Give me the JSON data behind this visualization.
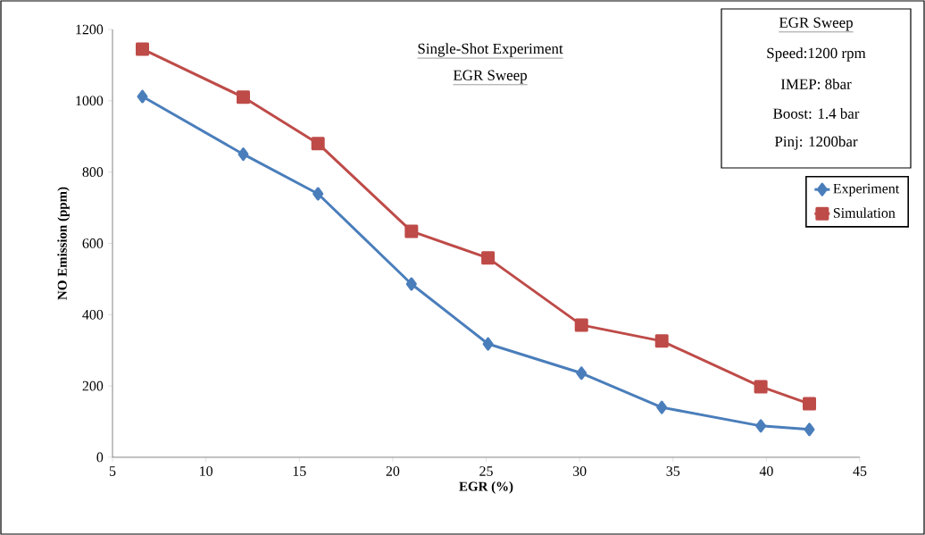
{
  "chart_data": {
    "type": "line",
    "xlabel": "EGR (%)",
    "ylabel": "NO Emission (ppm)",
    "x": [
      6.6,
      12.0,
      16.0,
      21.0,
      25.1,
      30.1,
      34.4,
      39.7,
      42.3
    ],
    "series": [
      {
        "name": "Experiment",
        "color": "#4a7ebb",
        "marker": "diamond",
        "values": [
          1012,
          850,
          739,
          486,
          318,
          236,
          140,
          88,
          78
        ]
      },
      {
        "name": "Simulation",
        "color": "#be4b48",
        "marker": "square",
        "values": [
          1145,
          1010,
          880,
          634,
          559,
          371,
          326,
          198,
          150
        ]
      }
    ],
    "xlim": [
      5,
      45
    ],
    "xticks": [
      5,
      10,
      15,
      20,
      25,
      30,
      35,
      40,
      45
    ],
    "ylim": [
      0,
      1200
    ],
    "yticks": [
      0,
      200,
      400,
      600,
      800,
      1000,
      1200
    ],
    "grid": false,
    "legend": "top right",
    "line_style": "solid",
    "annotations": [
      "Single-Shot Experiment",
      "EGR Sweep",
      "EGR Sweep",
      "Speed:1200 rpm",
      "IMEP: 8bar",
      "Boost: 1.4 bar",
      "Pinj: 1200bar"
    ]
  }
}
